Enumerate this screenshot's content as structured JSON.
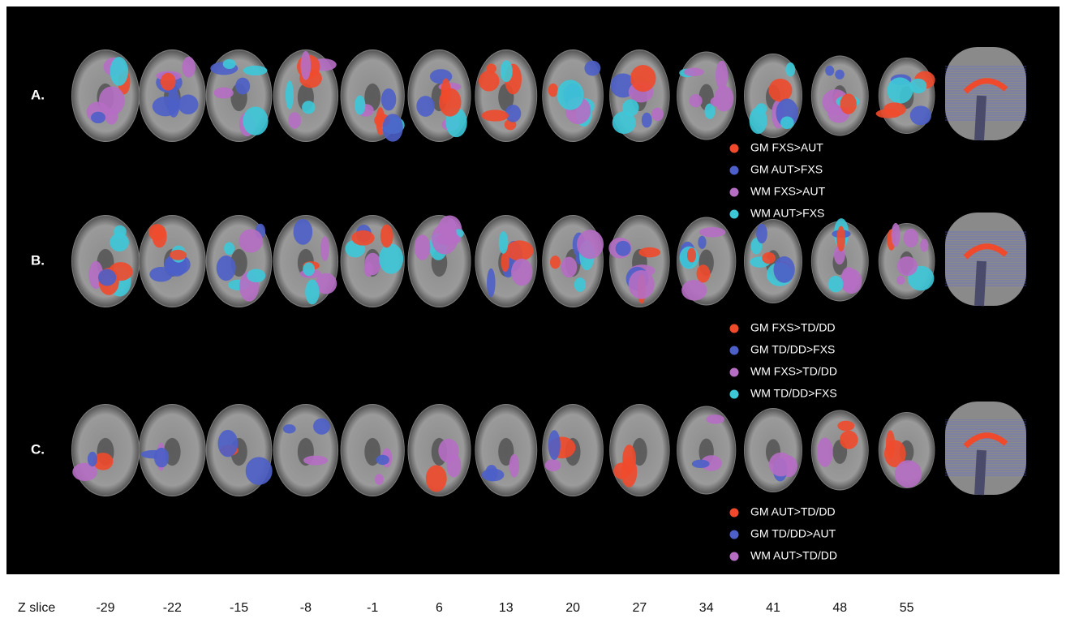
{
  "rows": [
    {
      "label": "A.",
      "legend": [
        {
          "label": "GM FXS>AUT",
          "color": "#ef4a2c"
        },
        {
          "label": "GM AUT>FXS",
          "color": "#4d5fc8"
        },
        {
          "label": "WM FXS>AUT",
          "color": "#b56ec4"
        },
        {
          "label": "WM AUT>FXS",
          "color": "#3dc8d8"
        }
      ]
    },
    {
      "label": "B.",
      "legend": [
        {
          "label": "GM FXS>TD/DD",
          "color": "#ef4a2c"
        },
        {
          "label": "GM TD/DD>FXS",
          "color": "#4d5fc8"
        },
        {
          "label": "WM FXS>TD/DD",
          "color": "#b56ec4"
        },
        {
          "label": "WM TD/DD>FXS",
          "color": "#3dc8d8"
        }
      ]
    },
    {
      "label": "C.",
      "legend": [
        {
          "label": "GM AUT>TD/DD",
          "color": "#ef4a2c"
        },
        {
          "label": "GM TD/DD>AUT",
          "color": "#4d5fc8"
        },
        {
          "label": "WM AUT>TD/DD",
          "color": "#b56ec4"
        }
      ]
    }
  ],
  "z_slice": {
    "label": "Z slice",
    "values": [
      -29,
      -22,
      -15,
      -8,
      -1,
      6,
      13,
      20,
      27,
      34,
      41,
      48,
      55
    ]
  }
}
